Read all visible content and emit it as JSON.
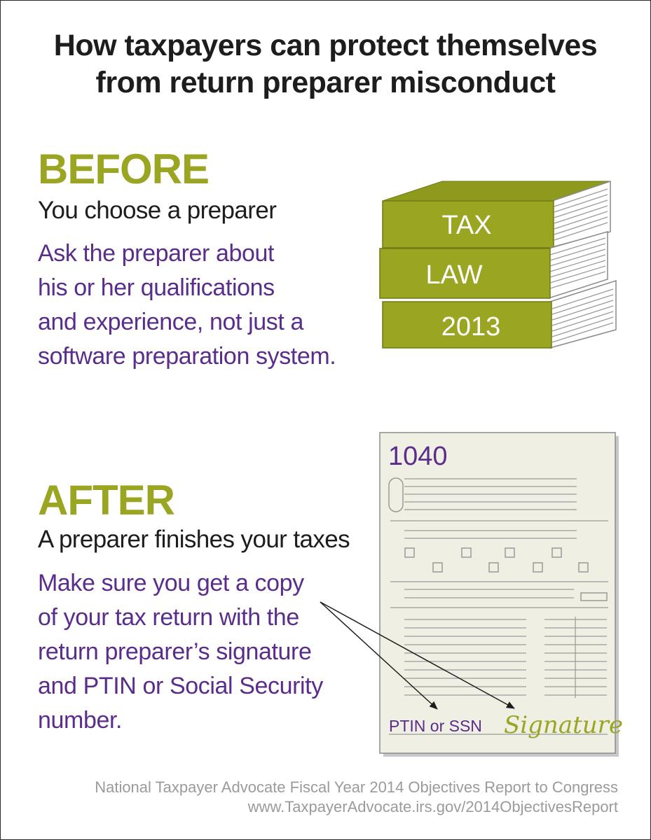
{
  "title": {
    "line1": "How taxpayers can protect themselves",
    "line2": "from return preparer misconduct"
  },
  "before": {
    "heading": "BEFORE",
    "subheading": "You choose a preparer",
    "body_lines": [
      "Ask the preparer about",
      "his or her qualifications",
      "and experience, not just a",
      "software preparation system."
    ]
  },
  "after": {
    "heading": "AFTER",
    "subheading": "A preparer finishes your taxes",
    "body_lines": [
      "Make sure you get a copy",
      "of your tax return with the",
      "return preparer’s signature",
      "and PTIN or Social Security",
      "number."
    ]
  },
  "books": {
    "labels": [
      "TAX",
      "LAW",
      "2013"
    ]
  },
  "form": {
    "number": "1040",
    "ptin_label": "PTIN or SSN",
    "signature_label": "Signature"
  },
  "footer": {
    "line1": "National Taxpayer Advocate Fiscal Year 2014 Objectives Report to Congress",
    "line2": "www.TaxpayerAdvocate.irs.gov/2014ObjectivesReport"
  },
  "colors": {
    "green": "#9aa521",
    "purple": "#5a2d8c",
    "dark_text": "#1d1d1d",
    "form_paper": "#efefe3",
    "footer_gray": "#9b9b9b"
  }
}
